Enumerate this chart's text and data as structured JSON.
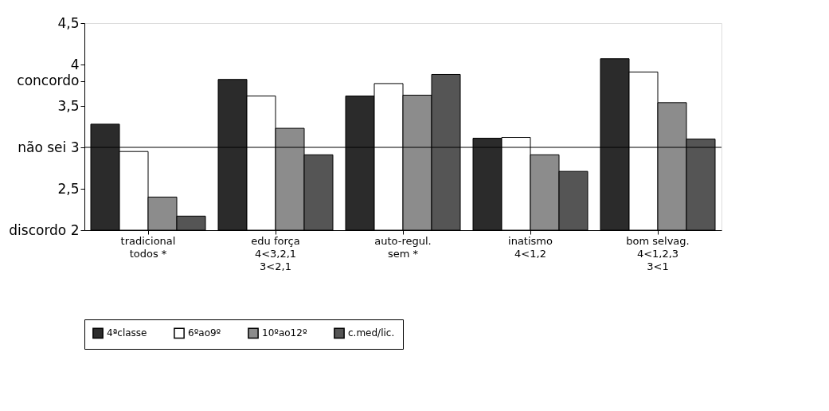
{
  "chart_data": {
    "type": "bar",
    "categories": [
      "tradicional\ntodos *",
      "edu força\n4<3,2,1\n3<2,1",
      "auto-regul.\nsem *",
      "inatismo\n4<1,2",
      "bom selvag.\n4<1,2,3\n3<1"
    ],
    "series": [
      {
        "name": "4ªclasse",
        "color": "#2b2b2b",
        "values": [
          3.28,
          3.82,
          3.62,
          3.11,
          4.07
        ]
      },
      {
        "name": "6ºao9º",
        "color": "#ffffff",
        "values": [
          2.95,
          3.62,
          3.77,
          3.12,
          3.91
        ]
      },
      {
        "name": "10ºao12º",
        "color": "#8c8c8c",
        "values": [
          2.4,
          3.23,
          3.63,
          2.91,
          3.54
        ]
      },
      {
        "name": "c.med/lic.",
        "color": "#555555",
        "values": [
          2.17,
          2.91,
          3.88,
          2.71,
          3.1
        ]
      }
    ],
    "ylim": [
      2,
      4.5
    ],
    "yticks": [
      {
        "value": 2,
        "label": "discordo 2"
      },
      {
        "value": 2.5,
        "label": "2,5"
      },
      {
        "value": 3,
        "label": "não sei 3"
      },
      {
        "value": 3.5,
        "label": "3,5"
      },
      {
        "value": 3.8,
        "label": "concordo"
      },
      4,
      {
        "value": 4.5,
        "label": "4,5"
      }
    ],
    "ref_lines": [
      {
        "axis": "y",
        "value": 3,
        "color": "#000000"
      }
    ],
    "grid": false,
    "legend": "bottom"
  }
}
